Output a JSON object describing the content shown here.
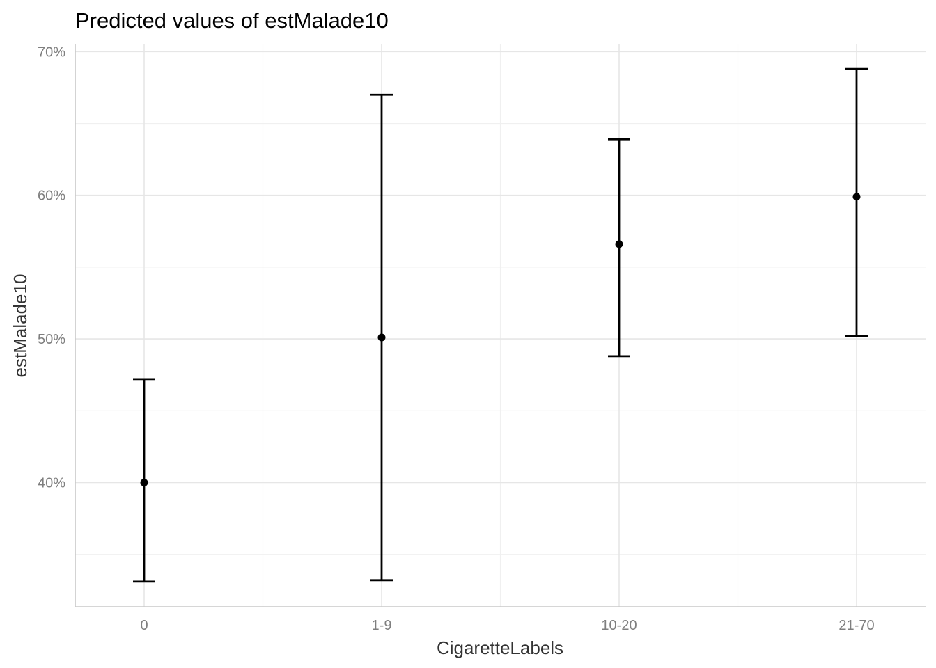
{
  "chart_data": {
    "type": "scatter",
    "title": "Predicted values of estMalade10",
    "xlabel": "CigaretteLabels",
    "ylabel": "estMalade10",
    "categories": [
      "0",
      "1-9",
      "10-20",
      "21-70"
    ],
    "values": [
      0.4,
      0.501,
      0.566,
      0.599
    ],
    "lower": [
      0.331,
      0.332,
      0.488,
      0.502
    ],
    "upper": [
      0.472,
      0.67,
      0.639,
      0.688
    ],
    "y_ticks": [
      0.4,
      0.5,
      0.6,
      0.7
    ],
    "y_tick_labels": [
      "40%",
      "50%",
      "60%",
      "70%"
    ],
    "ylim": [
      0.3135,
      0.7055
    ],
    "grid": true,
    "legend": "none",
    "colors": {
      "marks": "#000000",
      "grid": "#e6e6e6"
    }
  }
}
